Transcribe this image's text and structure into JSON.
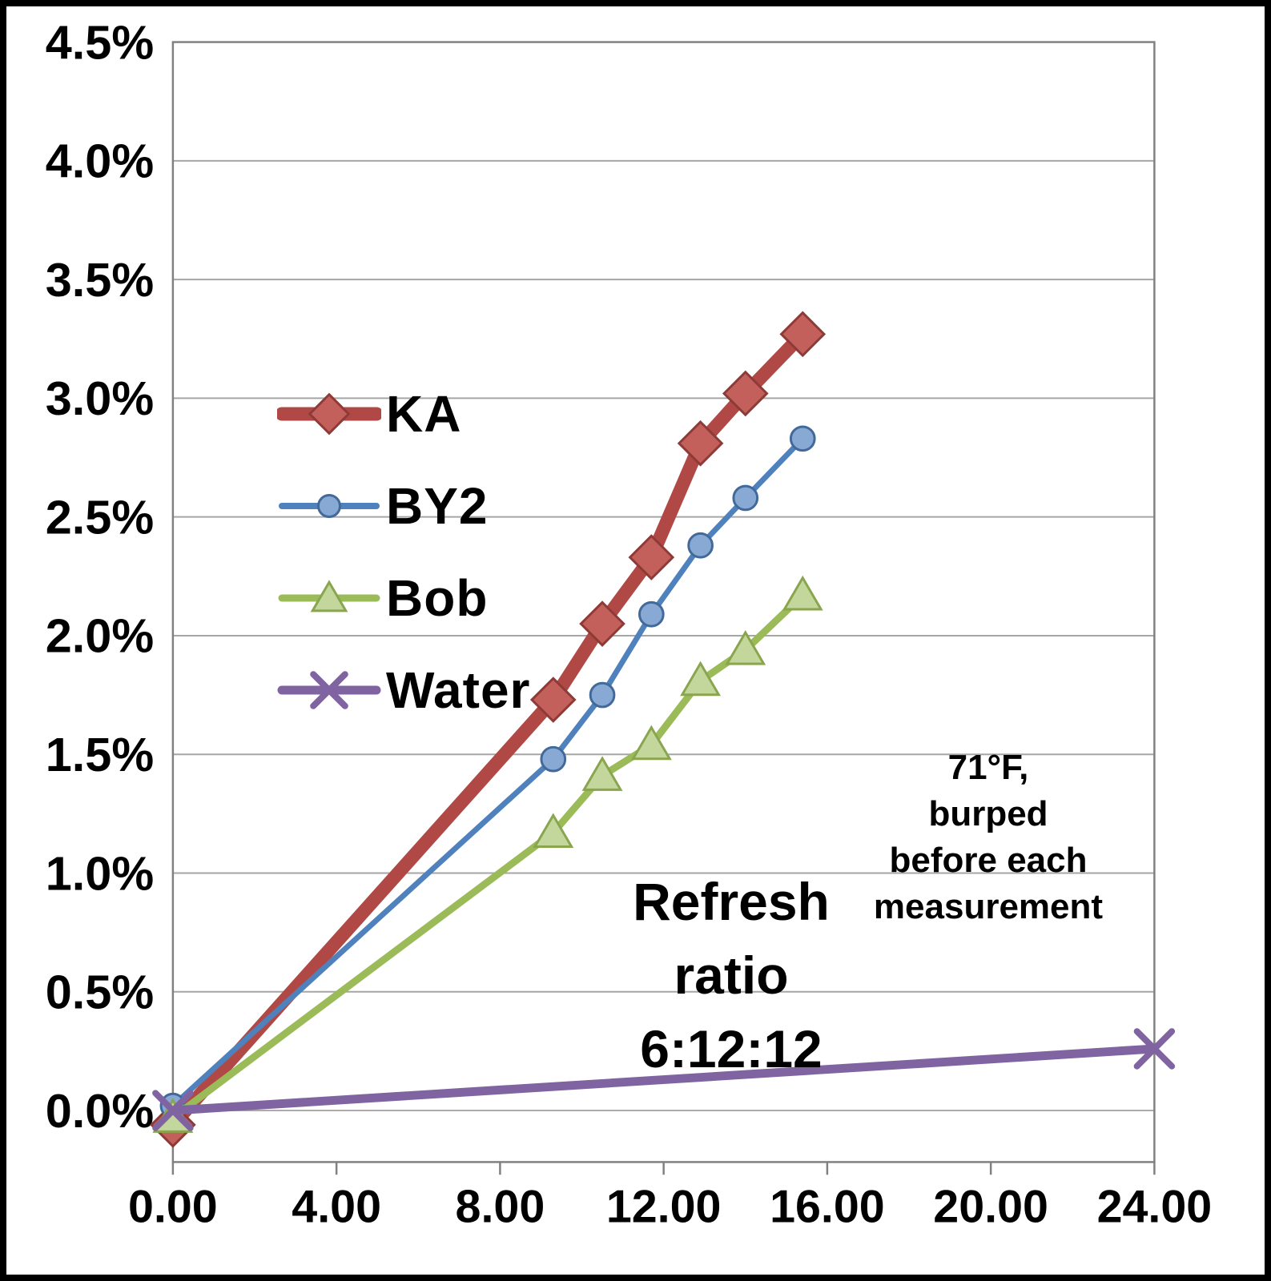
{
  "chart_data": {
    "type": "line",
    "title": "",
    "xlabel": "",
    "ylabel": "",
    "xlim": [
      0,
      24
    ],
    "ylim": [
      0,
      4.5
    ],
    "grid": "horizontal",
    "grid_color": "#A6A6A6",
    "axis_color": "#808080",
    "x_ticks": [
      "0.00",
      "4.00",
      "8.00",
      "12.00",
      "16.00",
      "20.00",
      "24.00"
    ],
    "x_tick_values": [
      0,
      4,
      8,
      12,
      16,
      20,
      24
    ],
    "y_ticks": [
      "0.0%",
      "0.5%",
      "1.0%",
      "1.5%",
      "2.0%",
      "2.5%",
      "3.0%",
      "3.5%",
      "4.0%",
      "4.5%"
    ],
    "y_tick_values": [
      0,
      0.5,
      1,
      1.5,
      2,
      2.5,
      3,
      3.5,
      4,
      4.5
    ],
    "legend_position": "inside-left",
    "series": [
      {
        "name": "KA",
        "marker": "diamond",
        "color": "#B04946",
        "marker_fill": "#C4605B",
        "marker_stroke": "#8E3A37",
        "line_width": 17,
        "x": [
          0,
          9.3,
          10.5,
          11.7,
          12.9,
          14.0,
          15.4
        ],
        "y": [
          -0.06,
          1.73,
          2.05,
          2.33,
          2.81,
          3.02,
          3.27
        ]
      },
      {
        "name": "BY2",
        "marker": "circle",
        "color": "#4F81BD",
        "marker_fill": "#88A9D4",
        "marker_stroke": "#41699A",
        "line_width": 7,
        "x": [
          0,
          9.3,
          10.5,
          11.7,
          12.9,
          14.0,
          15.4
        ],
        "y": [
          0.02,
          1.48,
          1.75,
          2.09,
          2.38,
          2.58,
          2.83
        ]
      },
      {
        "name": "Bob",
        "marker": "triangle",
        "color": "#9BBB59",
        "marker_fill": "#C3D69B",
        "marker_stroke": "#89A54E",
        "line_width": 9,
        "x": [
          0,
          9.3,
          10.5,
          11.7,
          12.9,
          14.0,
          15.4
        ],
        "y": [
          -0.03,
          1.17,
          1.41,
          1.54,
          1.81,
          1.94,
          2.17
        ]
      },
      {
        "name": "Water",
        "marker": "x",
        "color": "#8064A2",
        "marker_fill": "none",
        "marker_stroke": "#8064A2",
        "line_width": 11,
        "x": [
          0,
          24
        ],
        "y": [
          0.0,
          0.26
        ]
      }
    ],
    "annotations": [
      {
        "id": "refresh-ratio",
        "lines": [
          "Refresh",
          "ratio",
          "6:12:12"
        ]
      },
      {
        "id": "conditions",
        "lines": [
          "71°F,",
          "burped",
          "before each",
          "measurement"
        ]
      }
    ]
  }
}
